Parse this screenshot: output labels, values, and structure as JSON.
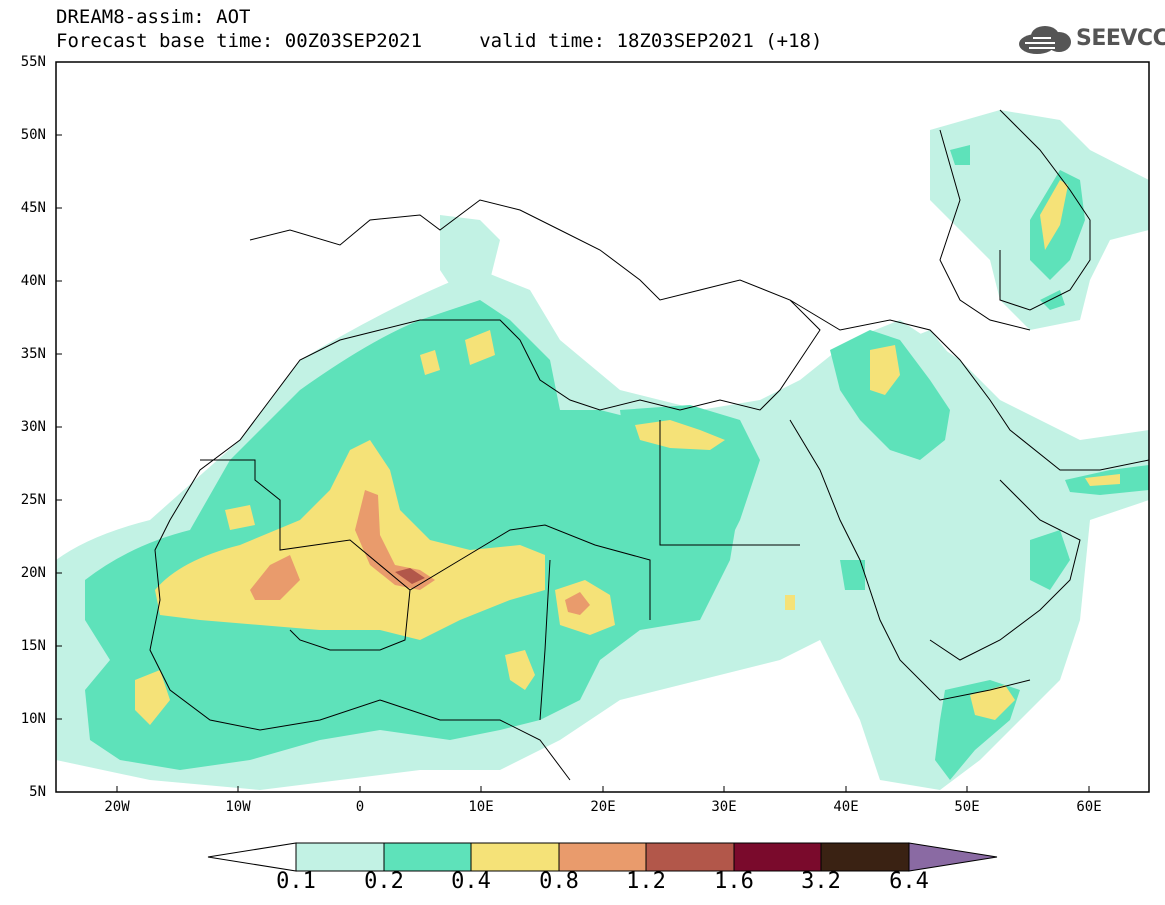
{
  "title": {
    "line1": "DREAM8-assim: AOT",
    "line2": "Forecast base time: 00Z03SEP2021     valid time: 18Z03SEP2021 (+18)"
  },
  "logo": {
    "text": "SEEVCCC",
    "icon": "cloud-icon"
  },
  "map": {
    "lon_range": [
      -25,
      65
    ],
    "lat_range": [
      5,
      55
    ],
    "lat_ticks": [
      "55N",
      "50N",
      "45N",
      "40N",
      "35N",
      "30N",
      "25N",
      "20N",
      "15N",
      "10N",
      "5N"
    ],
    "lon_ticks": [
      "20W",
      "10W",
      "0",
      "10E",
      "20E",
      "30E",
      "40E",
      "50E",
      "60E"
    ]
  },
  "colorbar": {
    "labels": [
      "0.1",
      "0.2",
      "0.4",
      "0.8",
      "1.2",
      "1.6",
      "3.2",
      "6.4"
    ],
    "colors": [
      "#ffffff",
      "#c2f2e4",
      "#5ee2ba",
      "#f5e278",
      "#e99b6c",
      "#b2574a",
      "#7a0a2c",
      "#3a2213",
      "#8a6aa3"
    ]
  }
}
